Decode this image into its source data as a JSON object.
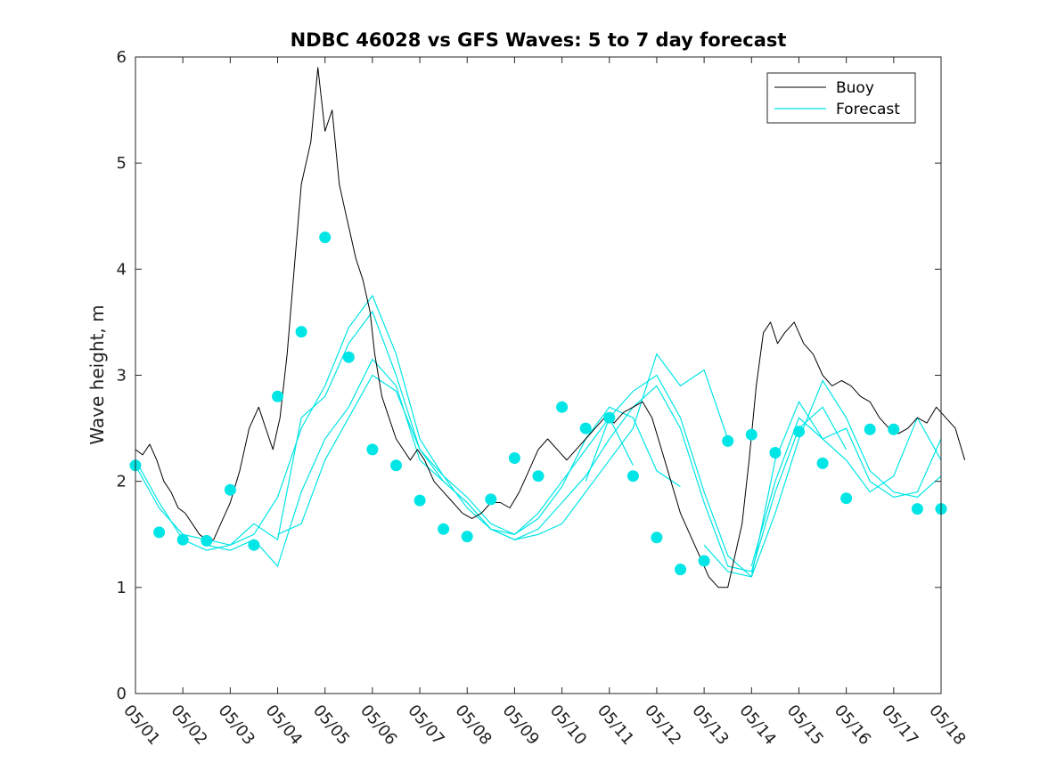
{
  "chart_data": {
    "type": "line",
    "title": "NDBC 46028 vs GFS Waves: 5 to 7 day forecast",
    "ylabel": "Wave height, m",
    "xlabel": "",
    "xlim": [
      0,
      17
    ],
    "ylim": [
      0,
      6
    ],
    "yticks": [
      "0",
      "1",
      "2",
      "3",
      "4",
      "5",
      "6"
    ],
    "xtick_labels": [
      "05/01",
      "05/02",
      "05/03",
      "05/04",
      "05/05",
      "05/06",
      "05/07",
      "05/08",
      "05/09",
      "05/10",
      "05/11",
      "05/12",
      "05/13",
      "05/14",
      "05/15",
      "05/16",
      "05/17",
      "05/18"
    ],
    "grid": false,
    "legend_position": "top-right",
    "colors": {
      "buoy": "#000000",
      "forecast": "#00e5e5"
    },
    "buoy": {
      "name": "Buoy",
      "x": [
        0,
        0.15,
        0.3,
        0.45,
        0.6,
        0.75,
        0.9,
        1.05,
        1.2,
        1.35,
        1.5,
        1.65,
        1.8,
        2.0,
        2.2,
        2.4,
        2.6,
        2.75,
        2.9,
        3.05,
        3.2,
        3.35,
        3.5,
        3.7,
        3.85,
        4.0,
        4.15,
        4.3,
        4.45,
        4.55,
        4.65,
        4.8,
        4.95,
        5.05,
        5.2,
        5.35,
        5.5,
        5.65,
        5.8,
        5.95,
        6.1,
        6.3,
        6.5,
        6.7,
        6.9,
        7.1,
        7.3,
        7.5,
        7.7,
        7.9,
        8.1,
        8.3,
        8.5,
        8.7,
        8.9,
        9.1,
        9.3,
        9.5,
        9.7,
        9.9,
        10.1,
        10.3,
        10.5,
        10.7,
        10.9,
        11.1,
        11.3,
        11.5,
        11.7,
        11.9,
        12.1,
        12.3,
        12.5,
        12.65,
        12.8,
        12.95,
        13.1,
        13.25,
        13.4,
        13.55,
        13.7,
        13.9,
        14.1,
        14.3,
        14.5,
        14.7,
        14.9,
        15.1,
        15.3,
        15.5,
        15.7,
        15.9,
        16.1,
        16.3,
        16.5,
        16.7,
        16.9,
        17.1,
        17.3,
        17.5
      ],
      "y": [
        2.3,
        2.25,
        2.35,
        2.2,
        2.0,
        1.9,
        1.75,
        1.7,
        1.6,
        1.5,
        1.45,
        1.45,
        1.6,
        1.8,
        2.1,
        2.5,
        2.7,
        2.5,
        2.3,
        2.6,
        3.2,
        4.0,
        4.8,
        5.2,
        5.9,
        5.3,
        5.5,
        4.8,
        4.5,
        4.3,
        4.1,
        3.9,
        3.6,
        3.2,
        2.8,
        2.6,
        2.4,
        2.3,
        2.2,
        2.3,
        2.2,
        2.0,
        1.9,
        1.8,
        1.7,
        1.65,
        1.7,
        1.8,
        1.8,
        1.75,
        1.9,
        2.1,
        2.3,
        2.4,
        2.3,
        2.2,
        2.3,
        2.4,
        2.5,
        2.6,
        2.55,
        2.65,
        2.7,
        2.75,
        2.6,
        2.3,
        2.0,
        1.7,
        1.5,
        1.3,
        1.1,
        1.0,
        1.0,
        1.3,
        1.6,
        2.2,
        2.9,
        3.4,
        3.5,
        3.3,
        3.4,
        3.5,
        3.3,
        3.2,
        3.0,
        2.9,
        2.95,
        2.9,
        2.8,
        2.75,
        2.6,
        2.5,
        2.45,
        2.5,
        2.6,
        2.55,
        2.7,
        2.6,
        2.5,
        2.2
      ]
    },
    "forecast": {
      "name": "Forecast",
      "lines": [
        {
          "x": [
            0,
            0.5,
            1.0,
            1.5,
            2.0,
            2.5,
            3.0,
            3.5,
            4.0,
            4.5,
            5.0,
            5.5,
            6.0,
            6.5,
            7.0,
            7.5,
            8.0,
            8.5,
            9.0,
            9.5,
            10.0,
            10.5
          ],
          "y": [
            2.15,
            1.75,
            1.5,
            1.45,
            1.4,
            1.5,
            1.85,
            2.5,
            2.9,
            3.45,
            3.75,
            3.2,
            2.4,
            2.05,
            1.85,
            1.6,
            1.5,
            1.7,
            2.0,
            2.3,
            2.6,
            2.15
          ]
        },
        {
          "x": [
            0,
            0.5,
            1.0,
            1.5,
            2.0,
            2.5,
            3.0,
            3.5,
            4.0,
            4.5,
            5.0,
            5.5,
            6.0,
            6.5,
            7.0,
            7.5,
            8.0,
            8.5,
            9.0,
            9.5,
            10.0,
            10.5,
            11.0,
            11.5
          ],
          "y": [
            2.2,
            1.8,
            1.45,
            1.35,
            1.4,
            1.6,
            1.45,
            2.6,
            2.8,
            3.3,
            3.6,
            3.0,
            2.3,
            2.0,
            1.8,
            1.55,
            1.5,
            1.65,
            1.95,
            2.4,
            2.7,
            2.6,
            2.1,
            1.95
          ]
        },
        {
          "x": [
            1.5,
            2.0,
            2.5,
            3.0,
            3.5,
            4.0,
            4.5,
            5.0,
            5.5,
            6.0,
            6.5,
            7.0,
            7.5,
            8.0,
            8.5,
            9.0,
            9.5,
            10.0,
            10.5,
            11.0,
            11.5,
            12.0,
            12.5
          ],
          "y": [
            1.4,
            1.35,
            1.45,
            1.2,
            1.9,
            2.4,
            2.7,
            3.15,
            2.9,
            2.2,
            2.0,
            1.8,
            1.55,
            1.45,
            1.5,
            1.6,
            1.9,
            2.2,
            2.5,
            3.2,
            2.9,
            3.05,
            2.4
          ]
        },
        {
          "x": [
            3.0,
            3.5,
            4.0,
            4.5,
            5.0,
            5.5,
            6.0,
            6.5,
            7.0,
            7.5,
            8.0,
            8.5,
            9.0,
            9.5,
            10.0,
            10.5,
            11.0,
            11.5,
            12.0,
            12.5,
            13.0,
            13.5,
            14.0,
            14.5,
            15.0
          ],
          "y": [
            1.5,
            1.6,
            2.2,
            2.6,
            3.0,
            2.85,
            2.3,
            2.05,
            1.75,
            1.55,
            1.45,
            1.55,
            1.8,
            2.05,
            2.4,
            2.7,
            2.9,
            2.5,
            1.8,
            1.2,
            1.15,
            1.9,
            2.5,
            2.7,
            2.3
          ]
        },
        {
          "x": [
            9.5,
            10.0,
            10.5,
            11.0,
            11.5,
            12.0,
            12.5,
            13.0,
            13.5,
            14.0,
            14.5,
            15.0,
            15.5,
            16.0,
            16.5,
            17.0
          ],
          "y": [
            2.0,
            2.6,
            2.85,
            3.0,
            2.6,
            1.9,
            1.3,
            1.1,
            1.7,
            2.4,
            2.95,
            2.6,
            2.1,
            1.9,
            1.85,
            2.05
          ]
        },
        {
          "x": [
            12.0,
            12.5,
            13.0,
            13.5,
            14.0,
            14.5,
            15.0,
            15.5,
            16.0,
            16.5,
            17.0
          ],
          "y": [
            1.4,
            1.15,
            1.1,
            2.2,
            2.75,
            2.4,
            2.5,
            2.0,
            1.85,
            1.9,
            2.4
          ]
        },
        {
          "x": [
            13.0,
            13.5,
            14.0,
            14.5,
            15.0,
            15.5,
            16.0,
            16.5,
            17.0
          ],
          "y": [
            1.2,
            2.0,
            2.6,
            2.4,
            2.2,
            1.9,
            2.05,
            2.6,
            2.2
          ]
        }
      ],
      "markers": {
        "x": [
          0,
          0.5,
          1.0,
          1.5,
          2.0,
          2.5,
          3.0,
          3.5,
          4.0,
          4.5,
          5.0,
          5.5,
          6.0,
          6.5,
          7.0,
          7.5,
          8.0,
          8.5,
          9.0,
          9.5,
          10.0,
          10.5,
          11.0,
          11.5,
          12.0,
          12.5,
          13.0,
          13.5,
          14.0,
          14.5,
          15.0,
          15.5,
          16.0,
          16.5,
          17.0
        ],
        "y": [
          2.15,
          1.52,
          1.45,
          1.44,
          1.92,
          1.4,
          2.8,
          3.41,
          4.3,
          3.17,
          2.3,
          2.15,
          1.82,
          1.55,
          1.48,
          1.83,
          2.22,
          2.05,
          2.7,
          2.5,
          2.6,
          2.05,
          1.47,
          1.17,
          1.25,
          2.38,
          2.44,
          2.27,
          2.47,
          2.17,
          1.84,
          2.49,
          2.49,
          1.74,
          1.74
        ]
      }
    }
  }
}
